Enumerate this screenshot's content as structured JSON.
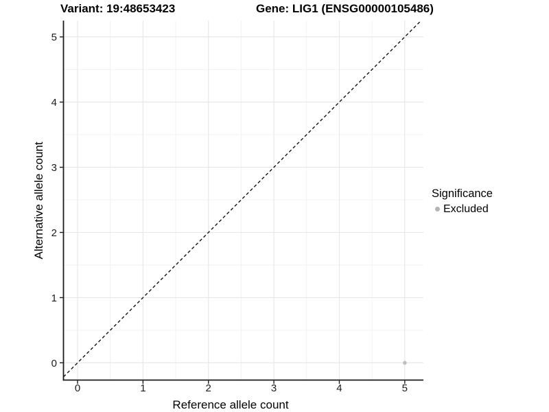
{
  "chart_data": {
    "type": "scatter",
    "titles": {
      "left": "Variant: 19:48653423",
      "right": "Gene: LIG1 (ENSG00000105486)"
    },
    "xlabel": "Reference allele count",
    "ylabel": "Alternative allele count",
    "xlim": [
      -0.215,
      5.285
    ],
    "ylim": [
      -0.265,
      5.25
    ],
    "xticks": [
      0,
      1,
      2,
      3,
      4,
      5
    ],
    "yticks": [
      0,
      1,
      2,
      3,
      4,
      5
    ],
    "grid": {
      "major_color": "#e6e6e6",
      "minor_color": "#f2f2f2",
      "minor_step": 0.5
    },
    "axis_color": "#1a1a1a",
    "identity_line": {
      "equation": "y = x",
      "style": "dashed",
      "color": "#111111"
    },
    "series": [
      {
        "name": "Excluded",
        "color": "#bebebe",
        "point_radius": 2.8,
        "points": [
          [
            5,
            0
          ]
        ]
      }
    ],
    "legend": {
      "title": "Significance",
      "position": "right",
      "items": [
        {
          "label": "Excluded",
          "color": "#b3b3b3"
        }
      ]
    }
  }
}
